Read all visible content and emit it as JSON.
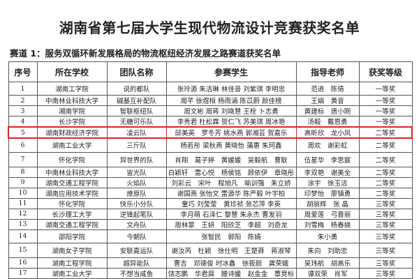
{
  "title": "湖南省第七届大学生现代物流设计竞赛获奖名单",
  "subtitle": "赛道 1：服务双循环新发展格局的物流枢纽经济发展之路赛道获奖名单",
  "headers": [
    "序号",
    "所在学校",
    "团队名称",
    "参赛学生",
    "指导老师",
    "获奖等级"
  ],
  "highlight_color": "#d9232d",
  "highlighted_row": 5,
  "rows": [
    [
      "1",
      "湖南工学院",
      "说的都队",
      "张玲源 朱洁琳 林佳音 刘紫琪 李明忠",
      "范进　陈倩",
      "一等奖"
    ],
    [
      "2",
      "中南林业科技大学",
      "碱基互补配队",
      "周芊 徐煜桓 杨雨涵 陈苡蔚 颜佳榜",
      "王娟　黄音",
      "一等奖"
    ],
    [
      "3",
      "湘南学院",
      "智联枢纽队",
      "周文彬 周蒋 刘晓慧 王栓 卜志勇",
      "黄建标　唐小刚",
      "一等奖"
    ],
    [
      "4",
      "长沙学院",
      "无糖可乐队",
      "李秀君 杜松霖 贺仁飞 苏美琪 周冰艳",
      "汤毅　戴恩勇",
      "一等奖"
    ],
    [
      "5",
      "湖南财政经济学院",
      "凌云队",
      "邱美英　罗冬芳 姚水燕 郭湘芸 贺嘉乐",
      "高昕欣　龙小凤",
      "二等奖"
    ],
    [
      "6",
      "湖南工业大学",
      "三斤队",
      "杨若彤 梁秋燕 黄晓怡 蒲惠 朱珂鑫",
      "周欢　谢彩虹",
      "二等奖"
    ],
    [
      "7",
      "怀化学院",
      "异世界的队",
      "肖翔　葛子婷　黄媛媛　吴毅航　曹耿",
      "伍星华　李思宸",
      "二等奖"
    ],
    [
      "8",
      "中南林业科技大学",
      "宙光队",
      "白颖轩　雷心悦　杨侯铭　顾依伊　章晓彤",
      "李双艳　谢美全",
      "二等奖"
    ],
    [
      "9",
      "湖南交通工程学院",
      "火焰队",
      "刘彩云　宋叶　程旭凡　喻训强　朱立娇",
      "涂宇　徐玉洁",
      "二等奖"
    ],
    [
      "10",
      "湖南应用技术学院",
      "燎原队",
      "谢国燕 张怡文 雷源华 陈严毅 叶宇柏",
      "印梦怡　廖镇勇",
      "二等奖"
    ],
    [
      "11",
      "怀化学院",
      "快乐小分队",
      "童巧 刘莹莹　黄珍祯 张芯萍 李英",
      "胡丽辉　张 晶",
      "三等奖"
    ],
    [
      "12",
      "长沙理工大学",
      "逆锋起笔队",
      "李月萌 石泽仁 黎慧 朱永杰 曹发羽",
      "周爱莲　弓晋丽",
      "三等奖"
    ],
    [
      "13",
      "湖南交通工程学院",
      "文舟队",
      "周林翠　王妍　阳欣芝　李超　刘奇龙",
      "刘雪梅　杨春娆",
      "三等奖"
    ],
    [
      "14",
      "邵阳学院",
      "今朝队",
      "张智民　郭阳　陈婧",
      "朱小勇",
      "三等奖"
    ],
    [
      "15",
      "湖南女子学院",
      "安联嘉运队",
      "谢汝芮　杜颖　徐仕明　王楚莽　蒋淑琴",
      "朱向　刘助忠",
      "三等奖"
    ],
    [
      "16",
      "湖南工程学院",
      "超异能队",
      "曹吉　邓德俊 时冰鑫　徐筱颜　龚荣娥",
      "吴玮航　胡高乐",
      "三等奖"
    ],
    [
      "17",
      "湖南工业大学",
      "不想当咸鱼",
      "饶志鹏　华君腐　滕诗媛　赵金金　覃竞标",
      "谭双荣　肖军",
      "三等奖"
    ]
  ]
}
